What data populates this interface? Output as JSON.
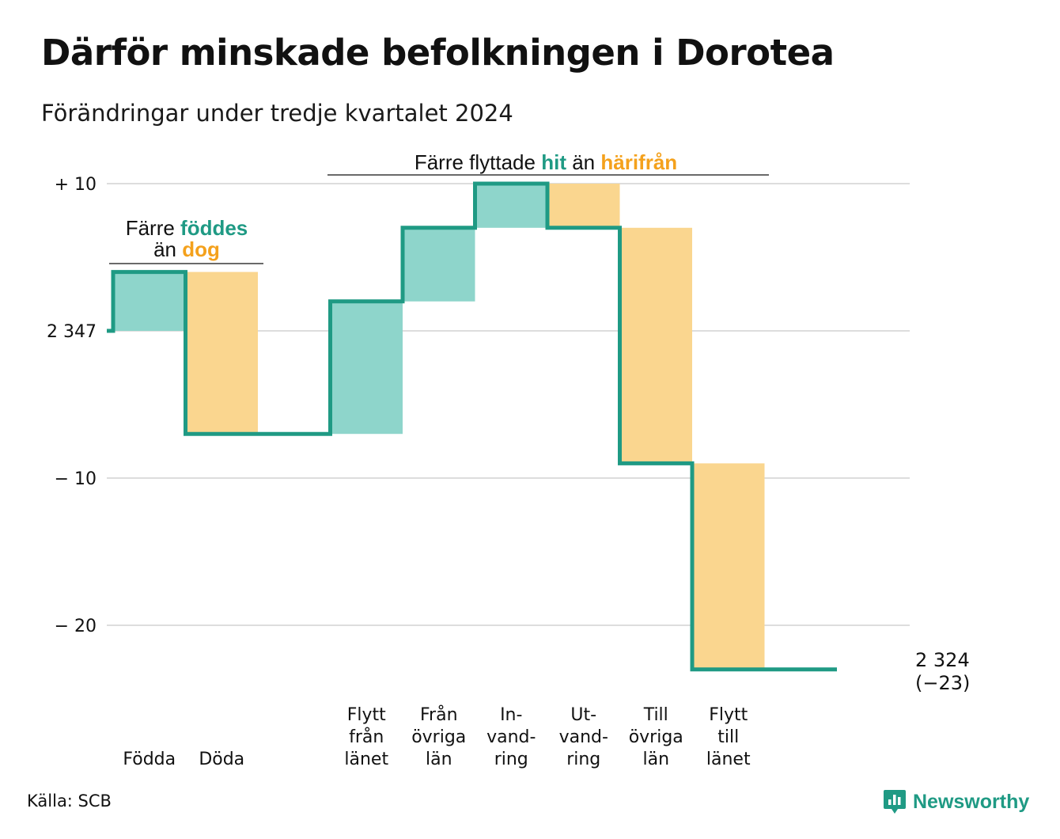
{
  "title": "Därför minskade befolkningen i Dorotea",
  "subtitle": "Förändringar under tredje kvartalet 2024",
  "source": "Källa: SCB",
  "brand": {
    "name": "Newsworthy",
    "icon": "bar-chart-speech-bubble-icon"
  },
  "colors": {
    "inflow": "#8ed5cb",
    "outflow": "#fad68f",
    "line": "#1f9a84",
    "accent_orange": "#f4a11c",
    "grid": "#dddddd"
  },
  "chart_data": {
    "type": "waterfall",
    "start_value": 2347,
    "end_value": 2324,
    "end_label": [
      "2 324",
      "(−23)"
    ],
    "ylim": [
      -24,
      10
    ],
    "y_ticks": [
      {
        "value": 10,
        "label": "+ 10"
      },
      {
        "value": 0,
        "label": "2 347"
      },
      {
        "value": -10,
        "label": "− 10"
      },
      {
        "value": -20,
        "label": "− 20"
      }
    ],
    "grid": true,
    "steps": [
      {
        "label": "Födda",
        "label_lines": [
          "Födda"
        ],
        "value": 4,
        "type": "inflow"
      },
      {
        "label": "Döda",
        "label_lines": [
          "Döda"
        ],
        "value": -11,
        "type": "outflow"
      },
      {
        "label": "",
        "label_lines": [],
        "value": 0,
        "type": "none"
      },
      {
        "label": "Flytt från länet",
        "label_lines": [
          "Flytt",
          "från",
          "länet"
        ],
        "value": 9,
        "type": "inflow"
      },
      {
        "label": "Från övriga län",
        "label_lines": [
          "Från",
          "övriga",
          "län"
        ],
        "value": 5,
        "type": "inflow"
      },
      {
        "label": "In-vand-ring",
        "label_lines": [
          "In-",
          "vand-",
          "ring"
        ],
        "value": 3,
        "type": "inflow"
      },
      {
        "label": "Ut-vand-ring",
        "label_lines": [
          "Ut-",
          "vand-",
          "ring"
        ],
        "value": -3,
        "type": "outflow"
      },
      {
        "label": "Till övriga län",
        "label_lines": [
          "Till",
          "övriga",
          "län"
        ],
        "value": -16,
        "type": "outflow"
      },
      {
        "label": "Flytt till länet",
        "label_lines": [
          "Flytt",
          "till",
          "länet"
        ],
        "value": -14,
        "type": "outflow"
      },
      {
        "label": "",
        "label_lines": [],
        "value": 0,
        "type": "none"
      }
    ],
    "annotations": [
      {
        "id": "births",
        "parts": [
          {
            "line": 0,
            "text": "Färre ",
            "style": "plain"
          },
          {
            "line": 0,
            "text": "föddes",
            "style": "inflow"
          },
          {
            "line": 1,
            "text": "än ",
            "style": "plain"
          },
          {
            "line": 1,
            "text": "dog",
            "style": "outflow"
          }
        ]
      },
      {
        "id": "moves",
        "parts": [
          {
            "line": 0,
            "text": "Färre flyttade ",
            "style": "plain"
          },
          {
            "line": 0,
            "text": "hit",
            "style": "inflow"
          },
          {
            "line": 0,
            "text": " än ",
            "style": "plain"
          },
          {
            "line": 0,
            "text": "härifrån",
            "style": "outflow"
          }
        ]
      }
    ]
  }
}
